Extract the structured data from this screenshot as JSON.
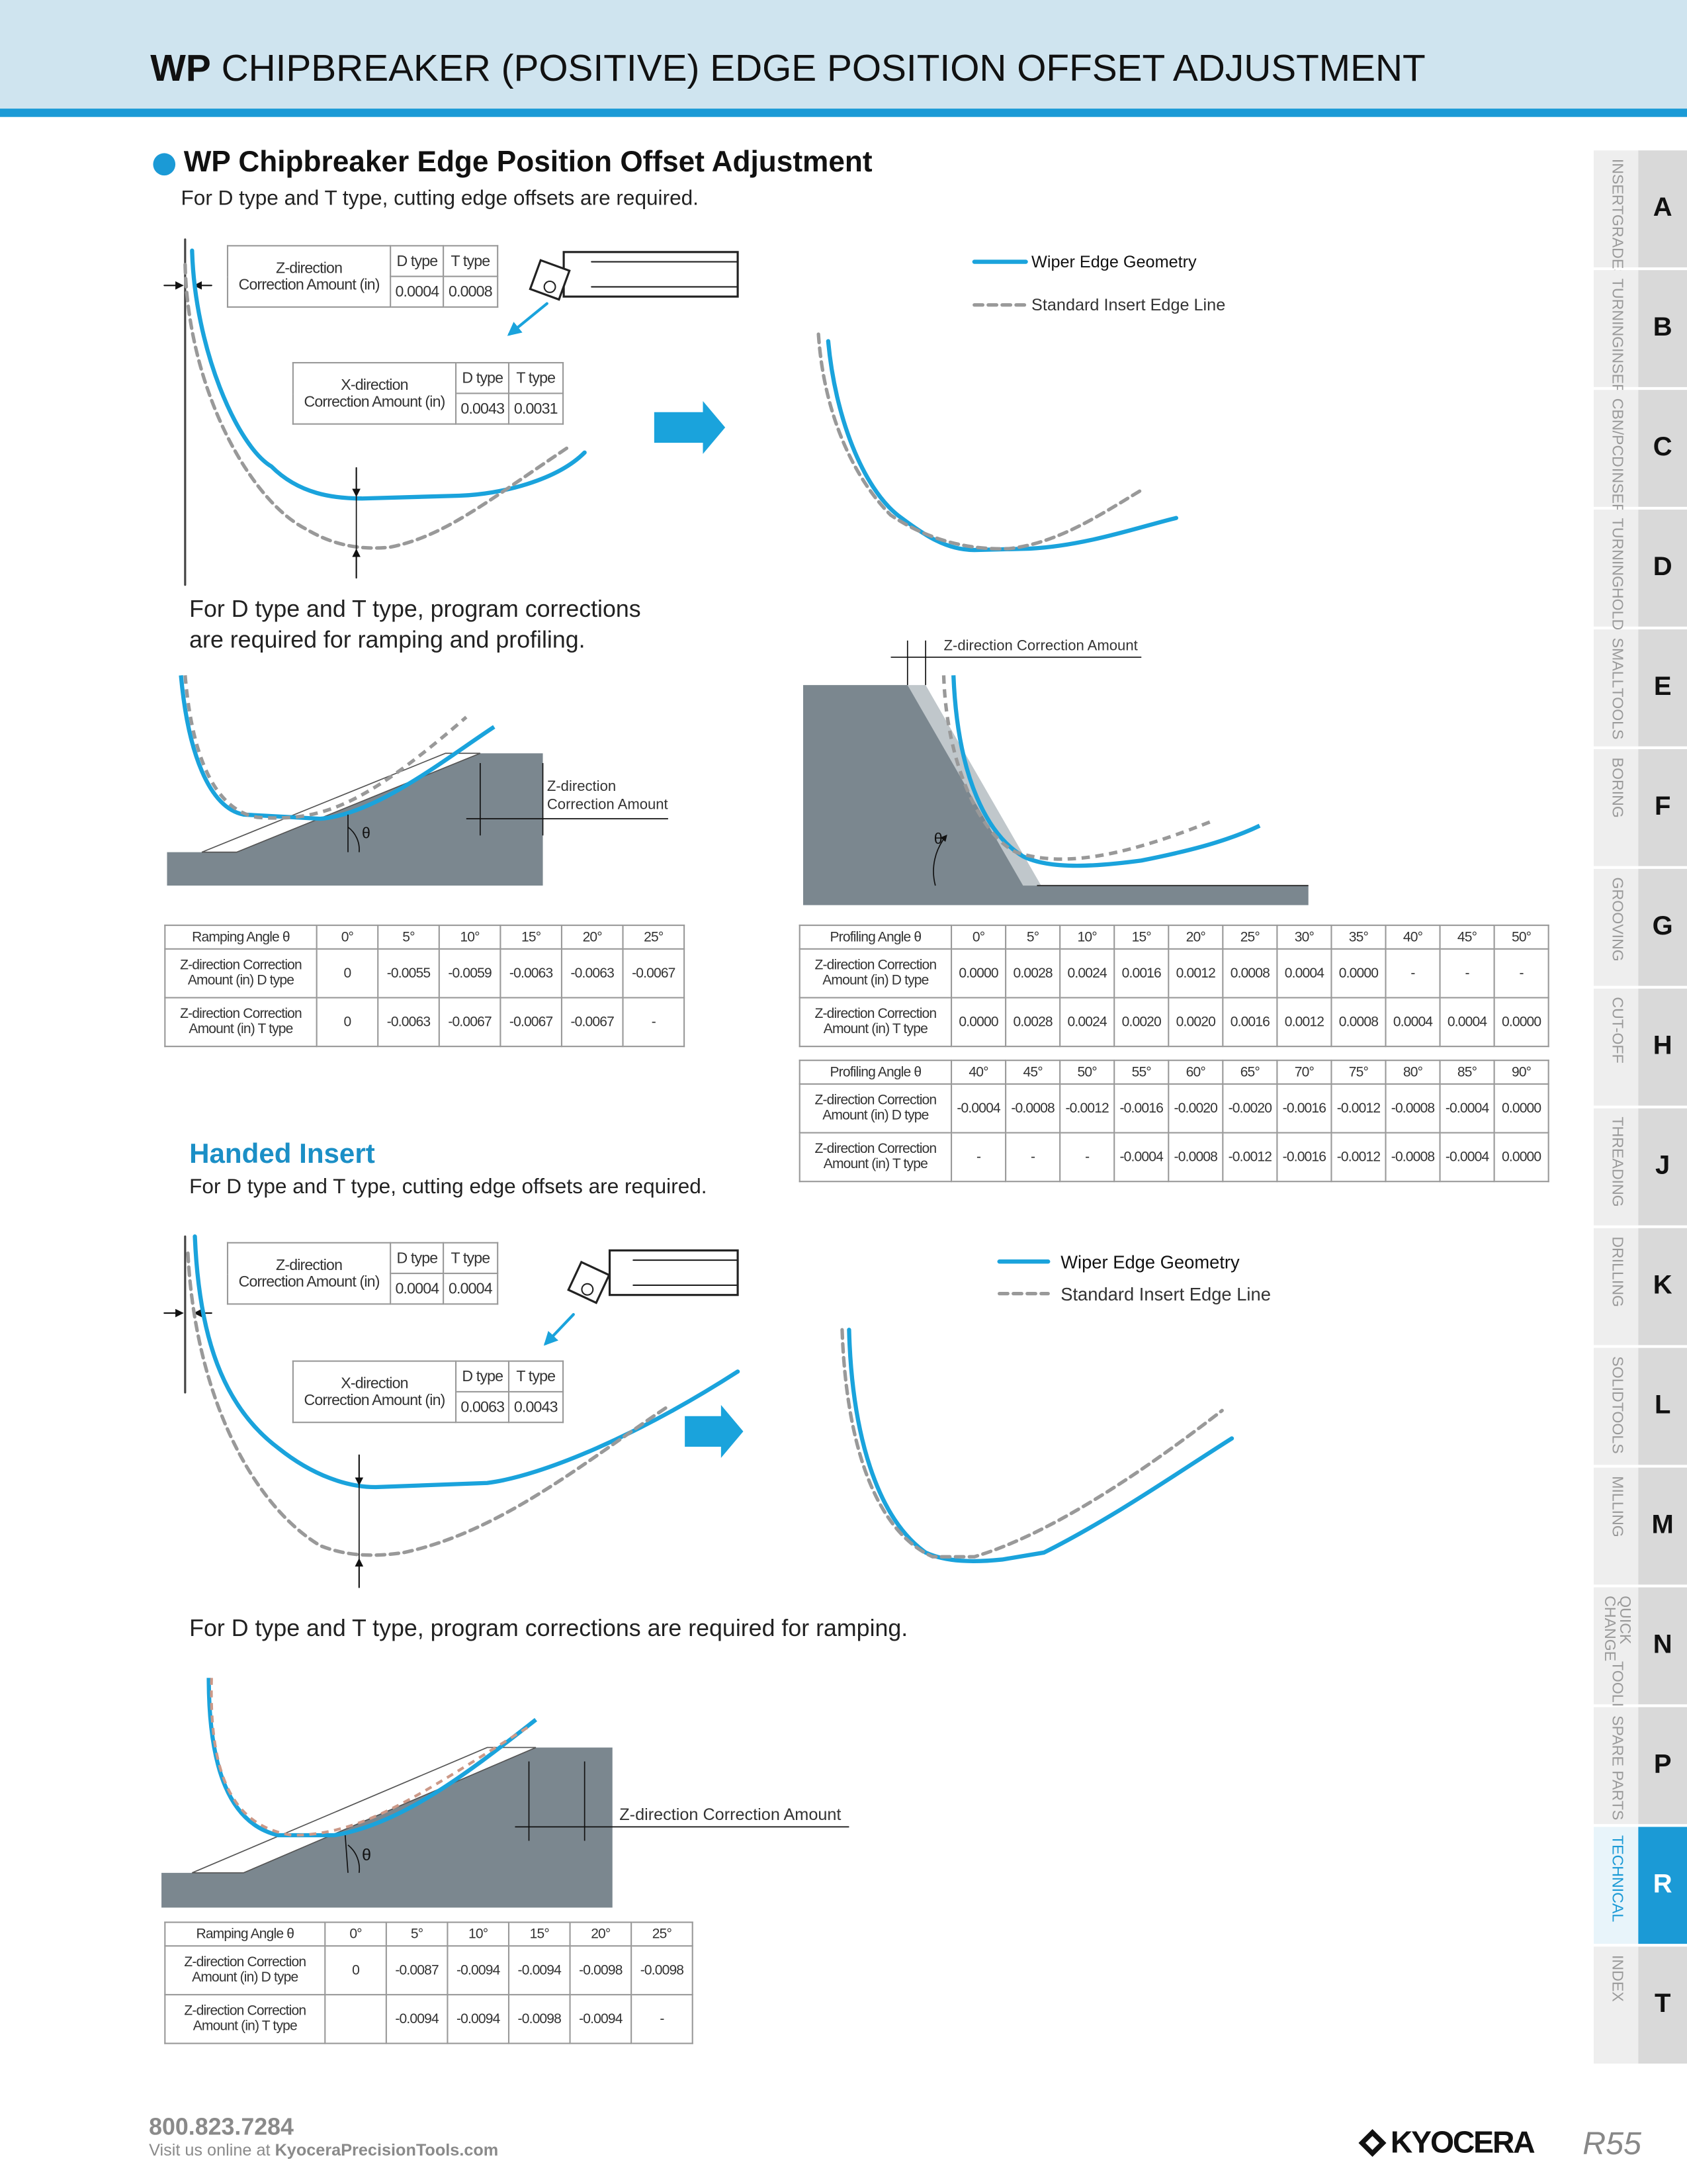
{
  "header": {
    "title_bold": "WP",
    "title_rest": "CHIPBREAKER (POSITIVE) EDGE POSITION OFFSET ADJUSTMENT"
  },
  "section1": {
    "heading": "WP Chipbreaker Edge Position Offset Adjustment",
    "intro": "For D type and T type, cutting edge offsets are required.",
    "z_table": {
      "label": [
        "Z-direction",
        "Correction Amount (in)"
      ],
      "headers": [
        "D type",
        "T type"
      ],
      "values": [
        "0.0004",
        "0.0008"
      ]
    },
    "x_table": {
      "label": [
        "X-direction",
        "Correction Amount (in)"
      ],
      "headers": [
        "D type",
        "T type"
      ],
      "values": [
        "0.0043",
        "0.0031"
      ]
    },
    "legend": [
      "Wiper Edge Geometry",
      "Standard Insert Edge Line"
    ],
    "note": [
      "For D type and T type, program corrections",
      "are required for ramping and profiling."
    ],
    "ramp_label": [
      "Z-direction",
      "Correction Amount"
    ],
    "ramp_angle": "θ",
    "profile_label": "Z-direction Correction Amount",
    "profile_angle": "θ",
    "ramp_table": {
      "header": [
        "Ramping Angle θ",
        "0°",
        "5°",
        "10°",
        "15°",
        "20°",
        "25°"
      ],
      "rows": [
        {
          "label": [
            "Z-direction Correction",
            "Amount (in) D type"
          ],
          "cells": [
            "0",
            "-0.0055",
            "-0.0059",
            "-0.0063",
            "-0.0063",
            "-0.0067"
          ]
        },
        {
          "label": [
            "Z-direction Correction",
            "Amount (in) T type"
          ],
          "cells": [
            "0",
            "-0.0063",
            "-0.0067",
            "-0.0067",
            "-0.0067",
            "-"
          ]
        }
      ]
    },
    "profile_tables": [
      {
        "header": [
          "Profiling Angle θ",
          "0°",
          "5°",
          "10°",
          "15°",
          "20°",
          "25°",
          "30°",
          "35°",
          "40°",
          "45°",
          "50°"
        ],
        "rows": [
          {
            "label": [
              "Z-direction Correction",
              "Amount (in) D type"
            ],
            "cells": [
              "0.0000",
              "0.0028",
              "0.0024",
              "0.0016",
              "0.0012",
              "0.0008",
              "0.0004",
              "0.0000",
              "-",
              "-",
              "-"
            ]
          },
          {
            "label": [
              "Z-direction Correction",
              "Amount (in) T type"
            ],
            "cells": [
              "0.0000",
              "0.0028",
              "0.0024",
              "0.0020",
              "0.0020",
              "0.0016",
              "0.0012",
              "0.0008",
              "0.0004",
              "0.0004",
              "0.0000"
            ]
          }
        ]
      },
      {
        "header": [
          "Profiling Angle θ",
          "40°",
          "45°",
          "50°",
          "55°",
          "60°",
          "65°",
          "70°",
          "75°",
          "80°",
          "85°",
          "90°"
        ],
        "rows": [
          {
            "label": [
              "Z-direction Correction",
              "Amount (in) D type"
            ],
            "cells": [
              "-0.0004",
              "-0.0008",
              "-0.0012",
              "-0.0016",
              "-0.0020",
              "-0.0020",
              "-0.0016",
              "-0.0012",
              "-0.0008",
              "-0.0004",
              "0.0000"
            ]
          },
          {
            "label": [
              "Z-direction Correction",
              "Amount (in) T type"
            ],
            "cells": [
              "-",
              "-",
              "-",
              "-0.0004",
              "-0.0008",
              "-0.0012",
              "-0.0016",
              "-0.0012",
              "-0.0008",
              "-0.0004",
              "0.0000"
            ]
          }
        ]
      }
    ]
  },
  "section2": {
    "heading": "Handed Insert",
    "intro": "For D type and T type, cutting edge offsets are required.",
    "z_table": {
      "label": [
        "Z-direction",
        "Correction Amount (in)"
      ],
      "headers": [
        "D type",
        "T type"
      ],
      "values": [
        "0.0004",
        "0.0004"
      ]
    },
    "x_table": {
      "label": [
        "X-direction",
        "Correction Amount (in)"
      ],
      "headers": [
        "D type",
        "T type"
      ],
      "values": [
        "0.0063",
        "0.0043"
      ]
    },
    "legend": [
      "Wiper Edge Geometry",
      "Standard Insert Edge Line"
    ],
    "note": "For D type and T type, program corrections are required for ramping.",
    "ramp_label": "Z-direction Correction Amount",
    "ramp_angle": "θ",
    "ramp_table": {
      "header": [
        "Ramping Angle θ",
        "0°",
        "5°",
        "10°",
        "15°",
        "20°",
        "25°"
      ],
      "rows": [
        {
          "label": [
            "Z-direction Correction",
            "Amount (in) D type"
          ],
          "cells": [
            "0",
            "-0.0087",
            "-0.0094",
            "-0.0094",
            "-0.0098",
            "-0.0098"
          ]
        },
        {
          "label": [
            "Z-direction Correction",
            "Amount (in) T type"
          ],
          "cells": [
            null,
            "-0.0094",
            "-0.0094",
            "-0.0098",
            "-0.0094",
            "-"
          ]
        }
      ]
    }
  },
  "side_tabs": [
    {
      "label": [
        "INSERT",
        "GRADES"
      ],
      "letter": "A"
    },
    {
      "label": [
        "TURNING",
        "INSERTS"
      ],
      "letter": "B"
    },
    {
      "label": [
        "CBN/PCD",
        "INSERTS"
      ],
      "letter": "C"
    },
    {
      "label": [
        "TURNING",
        "HOLDERS"
      ],
      "letter": "D"
    },
    {
      "label": [
        "SMALL",
        "TOOLS"
      ],
      "letter": "E"
    },
    {
      "label": [
        "BORING"
      ],
      "letter": "F"
    },
    {
      "label": [
        "GROOVING"
      ],
      "letter": "G"
    },
    {
      "label": [
        "CUT-OFF"
      ],
      "letter": "H"
    },
    {
      "label": [
        "THREADING"
      ],
      "letter": "J"
    },
    {
      "label": [
        "DRILLING"
      ],
      "letter": "K"
    },
    {
      "label": [
        "SOLID",
        "TOOLS"
      ],
      "letter": "L"
    },
    {
      "label": [
        "MILLING"
      ],
      "letter": "M"
    },
    {
      "label": [
        "QUICK CHANGE",
        "TOOLING"
      ],
      "letter": "N"
    },
    {
      "label": [
        "SPARE PARTS"
      ],
      "letter": "P"
    },
    {
      "label": [
        "TECHNICAL"
      ],
      "letter": "R",
      "active": true
    },
    {
      "label": [
        "INDEX"
      ],
      "letter": "T"
    }
  ],
  "footer": {
    "phone": "800.823.7284",
    "visit": "Visit us online at",
    "url": "KyoceraPrecisionTools.com",
    "logo": "KYOCERA",
    "page": "R55"
  }
}
